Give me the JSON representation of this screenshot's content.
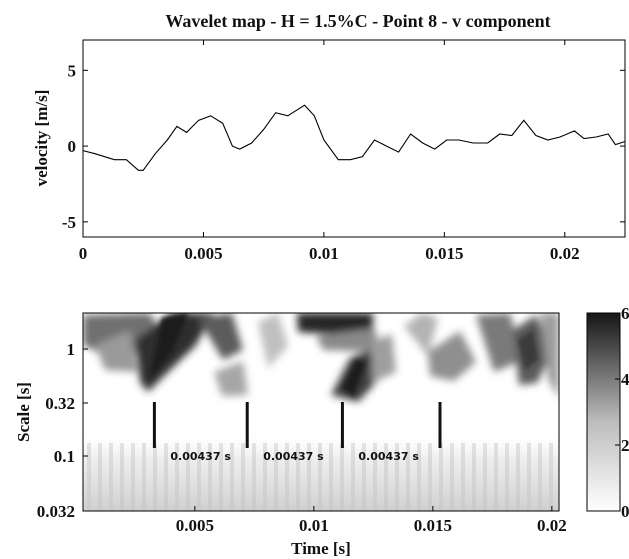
{
  "chart_data": [
    {
      "type": "line",
      "title": "Wavelet map - H = 1.5%C - Point 8 - v component",
      "xlabel": "",
      "ylabel": "velocity [m/s]",
      "xlim": [
        0,
        0.0225
      ],
      "ylim": [
        -6,
        7
      ],
      "xticks": [
        0,
        0.005,
        0.01,
        0.015,
        0.02
      ],
      "xtick_labels": [
        "0",
        "0.005",
        "0.01",
        "0.015",
        "0.02"
      ],
      "yticks": [
        5,
        0,
        -5
      ],
      "ytick_labels": [
        "5",
        "0",
        "-5"
      ],
      "series": [
        {
          "x": [
            0.0,
            0.0005,
            0.0013,
            0.0018,
            0.0023,
            0.0025,
            0.003,
            0.0035,
            0.0039,
            0.0043,
            0.0048,
            0.0053,
            0.0058,
            0.0062,
            0.0065,
            0.007,
            0.0075,
            0.008,
            0.0085,
            0.0092,
            0.0096,
            0.01,
            0.0106,
            0.0111,
            0.0116,
            0.0121,
            0.0126,
            0.0131,
            0.0136,
            0.0141,
            0.0146,
            0.0151,
            0.0156,
            0.0162,
            0.0168,
            0.0173,
            0.0178,
            0.0183,
            0.0188,
            0.0193,
            0.0198,
            0.0204,
            0.0208,
            0.0213,
            0.0218,
            0.0221,
            0.0225
          ],
          "values": [
            -0.3,
            -0.5,
            -0.9,
            -0.9,
            -1.6,
            -1.6,
            -0.5,
            0.4,
            1.3,
            0.9,
            1.7,
            2.0,
            1.5,
            0.0,
            -0.2,
            0.2,
            1.1,
            2.2,
            2.0,
            2.7,
            2.0,
            0.4,
            -0.9,
            -0.9,
            -0.7,
            0.4,
            0.0,
            -0.4,
            0.8,
            0.2,
            -0.2,
            0.4,
            0.4,
            0.2,
            0.2,
            0.8,
            0.7,
            1.7,
            0.7,
            0.4,
            0.6,
            1.0,
            0.5,
            0.6,
            0.8,
            0.1,
            0.3
          ]
        }
      ]
    },
    {
      "type": "heatmap",
      "xlabel": "Time [s]",
      "ylabel": "Scale [s]",
      "xticks": [
        0.005,
        0.01,
        0.015,
        0.02
      ],
      "xtick_labels": [
        "0.005",
        "0.01",
        "0.015",
        "0.02"
      ],
      "yticks": [
        1,
        0.32,
        0.1,
        0.032
      ],
      "ytick_labels": [
        "1",
        "0.32",
        "0.1",
        "0.032"
      ],
      "xlim": [
        0.0003,
        0.0203
      ],
      "colorbar_range": [
        0,
        6
      ],
      "colorbar_ticks": [
        6,
        4,
        2,
        0
      ],
      "colorbar_labels": [
        "6",
        "4",
        "2",
        "0"
      ],
      "markers": [
        {
          "time": 0.0033,
          "label": "0.00437 s"
        },
        {
          "time": 0.0072,
          "label": "0.00437 s"
        },
        {
          "time": 0.0112,
          "label": "0.00437 s"
        },
        {
          "time": 0.0153,
          "label": ""
        }
      ]
    }
  ]
}
